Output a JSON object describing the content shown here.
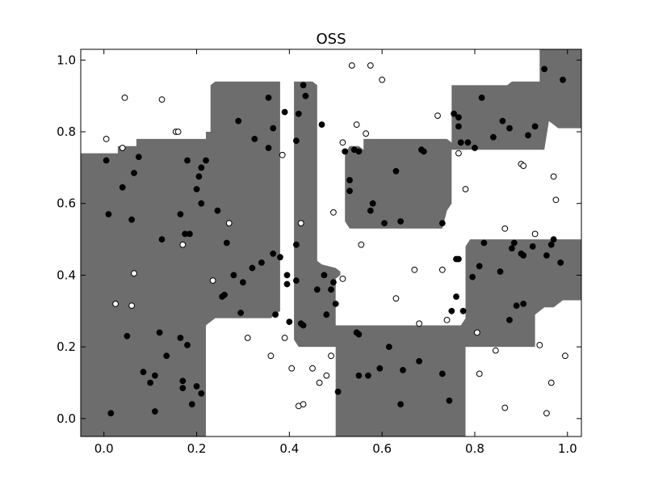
{
  "chart_data": {
    "type": "scatter",
    "title": "OSS",
    "xlabel": "",
    "ylabel": "",
    "xlim": [
      -0.05,
      1.03
    ],
    "ylim": [
      -0.05,
      1.03
    ],
    "xticks": [
      0.0,
      0.2,
      0.4,
      0.6,
      0.8,
      1.0
    ],
    "yticks": [
      0.0,
      0.2,
      0.4,
      0.6,
      0.8,
      1.0
    ],
    "tick_labels_x": [
      "0.0",
      "0.2",
      "0.4",
      "0.6",
      "0.8",
      "1.0"
    ],
    "tick_labels_y": [
      "0.0",
      "0.2",
      "0.4",
      "0.6",
      "0.8",
      "1.0"
    ],
    "grid": false,
    "legend": "none",
    "colors": {
      "region": "#6d6d6d",
      "filled_marker": "#000000",
      "open_marker_fill": "#ffffff",
      "marker_edge": "#000000"
    },
    "decision_regions": [
      [
        [
          -0.05,
          0.74
        ],
        [
          0.03,
          0.74
        ],
        [
          0.03,
          0.76
        ],
        [
          0.07,
          0.76
        ],
        [
          0.07,
          0.78
        ],
        [
          0.22,
          0.78
        ],
        [
          0.22,
          0.8
        ],
        [
          0.23,
          0.8
        ],
        [
          0.23,
          0.93
        ],
        [
          0.24,
          0.94
        ],
        [
          0.38,
          0.94
        ],
        [
          0.38,
          0.3
        ],
        [
          0.36,
          0.28
        ],
        [
          0.24,
          0.28
        ],
        [
          0.22,
          0.26
        ],
        [
          0.22,
          -0.05
        ],
        [
          -0.05,
          -0.05
        ]
      ],
      [
        [
          0.41,
          0.94
        ],
        [
          0.45,
          0.94
        ],
        [
          0.46,
          0.93
        ],
        [
          0.46,
          0.44
        ],
        [
          0.47,
          0.43
        ],
        [
          0.5,
          0.42
        ],
        [
          0.51,
          0.41
        ],
        [
          0.51,
          0.4
        ],
        [
          0.5,
          0.39
        ],
        [
          0.5,
          0.26
        ],
        [
          0.77,
          0.26
        ],
        [
          0.78,
          0.28
        ],
        [
          0.78,
          0.48
        ],
        [
          0.79,
          0.5
        ],
        [
          1.03,
          0.5
        ],
        [
          1.03,
          0.33
        ],
        [
          0.99,
          0.33
        ],
        [
          0.97,
          0.31
        ],
        [
          0.95,
          0.31
        ],
        [
          0.93,
          0.29
        ],
        [
          0.93,
          0.2
        ],
        [
          0.78,
          0.2
        ],
        [
          0.78,
          -0.05
        ],
        [
          0.5,
          -0.05
        ],
        [
          0.5,
          0.2
        ],
        [
          0.42,
          0.2
        ],
        [
          0.41,
          0.22
        ]
      ],
      [
        [
          0.52,
          0.74
        ],
        [
          0.53,
          0.76
        ],
        [
          0.55,
          0.76
        ],
        [
          0.56,
          0.75
        ],
        [
          0.56,
          0.78
        ],
        [
          0.74,
          0.78
        ],
        [
          0.75,
          0.77
        ],
        [
          0.75,
          0.6
        ],
        [
          0.74,
          0.58
        ],
        [
          0.73,
          0.53
        ],
        [
          0.53,
          0.53
        ],
        [
          0.52,
          0.55
        ]
      ],
      [
        [
          0.74,
          0.75
        ],
        [
          0.75,
          0.77
        ],
        [
          0.75,
          0.93
        ],
        [
          0.87,
          0.93
        ],
        [
          0.88,
          0.94
        ],
        [
          0.94,
          0.94
        ],
        [
          0.94,
          1.03
        ],
        [
          1.03,
          1.03
        ],
        [
          1.03,
          0.81
        ],
        [
          0.98,
          0.81
        ],
        [
          0.96,
          0.83
        ],
        [
          0.95,
          0.75
        ]
      ]
    ],
    "series": [
      {
        "marker": "filled",
        "points": [
          [
            0.005,
            0.72
          ],
          [
            0.01,
            0.57
          ],
          [
            0.015,
            0.015
          ],
          [
            0.04,
            0.645
          ],
          [
            0.05,
            0.23
          ],
          [
            0.06,
            0.555
          ],
          [
            0.065,
            0.685
          ],
          [
            0.075,
            0.73
          ],
          [
            0.085,
            0.13
          ],
          [
            0.1,
            0.1
          ],
          [
            0.11,
            0.12
          ],
          [
            0.11,
            0.02
          ],
          [
            0.12,
            0.24
          ],
          [
            0.125,
            0.5
          ],
          [
            0.135,
            0.175
          ],
          [
            0.165,
            0.57
          ],
          [
            0.165,
            0.225
          ],
          [
            0.17,
            0.105
          ],
          [
            0.17,
            0.085
          ],
          [
            0.175,
            0.515
          ],
          [
            0.18,
            0.205
          ],
          [
            0.18,
            0.72
          ],
          [
            0.185,
            0.515
          ],
          [
            0.19,
            0.04
          ],
          [
            0.2,
            0.64
          ],
          [
            0.2,
            0.09
          ],
          [
            0.205,
            0.675
          ],
          [
            0.21,
            0.07
          ],
          [
            0.21,
            0.7
          ],
          [
            0.21,
            0.6
          ],
          [
            0.22,
            0.72
          ],
          [
            0.245,
            0.58
          ],
          [
            0.255,
            0.34
          ],
          [
            0.26,
            0.345
          ],
          [
            0.265,
            0.49
          ],
          [
            0.28,
            0.4
          ],
          [
            0.29,
            0.83
          ],
          [
            0.295,
            0.295
          ],
          [
            0.3,
            0.38
          ],
          [
            0.32,
            0.42
          ],
          [
            0.325,
            0.78
          ],
          [
            0.34,
            0.435
          ],
          [
            0.355,
            0.895
          ],
          [
            0.355,
            0.755
          ],
          [
            0.365,
            0.81
          ],
          [
            0.365,
            0.46
          ],
          [
            0.37,
            0.29
          ],
          [
            0.38,
            0.45
          ],
          [
            0.39,
            0.855
          ],
          [
            0.395,
            0.4
          ],
          [
            0.395,
            0.375
          ],
          [
            0.4,
            0.27
          ],
          [
            0.415,
            0.775
          ],
          [
            0.415,
            0.485
          ],
          [
            0.415,
            0.385
          ],
          [
            0.42,
            0.85
          ],
          [
            0.425,
            0.265
          ],
          [
            0.43,
            0.93
          ],
          [
            0.43,
            0.26
          ],
          [
            0.435,
            0.9
          ],
          [
            0.46,
            0.36
          ],
          [
            0.47,
            0.82
          ],
          [
            0.475,
            0.4
          ],
          [
            0.48,
            0.29
          ],
          [
            0.49,
            0.36
          ],
          [
            0.495,
            0.38
          ],
          [
            0.5,
            0.32
          ],
          [
            0.505,
            0.075
          ],
          [
            0.52,
            0.745
          ],
          [
            0.53,
            0.665
          ],
          [
            0.53,
            0.635
          ],
          [
            0.54,
            0.75
          ],
          [
            0.545,
            0.24
          ],
          [
            0.55,
            0.12
          ],
          [
            0.55,
            0.745
          ],
          [
            0.55,
            0.235
          ],
          [
            0.57,
            0.12
          ],
          [
            0.575,
            0.58
          ],
          [
            0.58,
            0.6
          ],
          [
            0.595,
            0.14
          ],
          [
            0.605,
            0.545
          ],
          [
            0.615,
            0.2
          ],
          [
            0.63,
            0.69
          ],
          [
            0.64,
            0.55
          ],
          [
            0.64,
            0.04
          ],
          [
            0.645,
            0.135
          ],
          [
            0.68,
            0.16
          ],
          [
            0.685,
            0.75
          ],
          [
            0.69,
            0.745
          ],
          [
            0.73,
            0.125
          ],
          [
            0.73,
            0.545
          ],
          [
            0.745,
            0.05
          ],
          [
            0.75,
            0.3
          ],
          [
            0.755,
            0.85
          ],
          [
            0.76,
            0.34
          ],
          [
            0.76,
            0.445
          ],
          [
            0.765,
            0.445
          ],
          [
            0.765,
            0.815
          ],
          [
            0.765,
            0.84
          ],
          [
            0.77,
            0.77
          ],
          [
            0.775,
            0.3
          ],
          [
            0.785,
            0.77
          ],
          [
            0.795,
            0.395
          ],
          [
            0.8,
            0.755
          ],
          [
            0.81,
            0.425
          ],
          [
            0.815,
            0.895
          ],
          [
            0.82,
            0.49
          ],
          [
            0.84,
            0.785
          ],
          [
            0.855,
            0.41
          ],
          [
            0.86,
            0.83
          ],
          [
            0.875,
            0.275
          ],
          [
            0.875,
            0.81
          ],
          [
            0.88,
            0.475
          ],
          [
            0.885,
            0.49
          ],
          [
            0.89,
            0.315
          ],
          [
            0.9,
            0.46
          ],
          [
            0.905,
            0.455
          ],
          [
            0.905,
            0.32
          ],
          [
            0.915,
            0.79
          ],
          [
            0.925,
            0.48
          ],
          [
            0.93,
            0.815
          ],
          [
            0.95,
            0.975
          ],
          [
            0.955,
            0.455
          ],
          [
            0.965,
            0.485
          ],
          [
            0.97,
            0.5
          ],
          [
            0.985,
            0.435
          ],
          [
            0.99,
            0.945
          ]
        ]
      },
      {
        "marker": "open",
        "points": [
          [
            0.005,
            0.78
          ],
          [
            0.025,
            0.32
          ],
          [
            0.04,
            0.755
          ],
          [
            0.045,
            0.895
          ],
          [
            0.06,
            0.315
          ],
          [
            0.065,
            0.405
          ],
          [
            0.125,
            0.89
          ],
          [
            0.155,
            0.8
          ],
          [
            0.16,
            0.8
          ],
          [
            0.17,
            0.485
          ],
          [
            0.235,
            0.385
          ],
          [
            0.27,
            0.545
          ],
          [
            0.31,
            0.225
          ],
          [
            0.36,
            0.175
          ],
          [
            0.385,
            0.735
          ],
          [
            0.39,
            0.225
          ],
          [
            0.405,
            0.14
          ],
          [
            0.42,
            0.035
          ],
          [
            0.425,
            0.545
          ],
          [
            0.43,
            0.04
          ],
          [
            0.45,
            0.14
          ],
          [
            0.465,
            0.1
          ],
          [
            0.48,
            0.12
          ],
          [
            0.49,
            0.175
          ],
          [
            0.495,
            0.575
          ],
          [
            0.515,
            0.39
          ],
          [
            0.515,
            0.77
          ],
          [
            0.535,
            0.985
          ],
          [
            0.545,
            0.82
          ],
          [
            0.555,
            0.485
          ],
          [
            0.565,
            0.795
          ],
          [
            0.575,
            0.985
          ],
          [
            0.6,
            0.945
          ],
          [
            0.63,
            0.335
          ],
          [
            0.67,
            0.415
          ],
          [
            0.68,
            0.265
          ],
          [
            0.72,
            0.845
          ],
          [
            0.73,
            0.415
          ],
          [
            0.74,
            0.275
          ],
          [
            0.765,
            0.74
          ],
          [
            0.78,
            0.64
          ],
          [
            0.805,
            0.24
          ],
          [
            0.81,
            0.125
          ],
          [
            0.845,
            0.19
          ],
          [
            0.865,
            0.53
          ],
          [
            0.865,
            0.03
          ],
          [
            0.9,
            0.71
          ],
          [
            0.905,
            0.705
          ],
          [
            0.93,
            0.515
          ],
          [
            0.94,
            0.205
          ],
          [
            0.955,
            0.015
          ],
          [
            0.965,
            0.1
          ],
          [
            0.97,
            0.675
          ],
          [
            0.975,
            0.61
          ],
          [
            0.995,
            0.175
          ]
        ]
      }
    ]
  }
}
